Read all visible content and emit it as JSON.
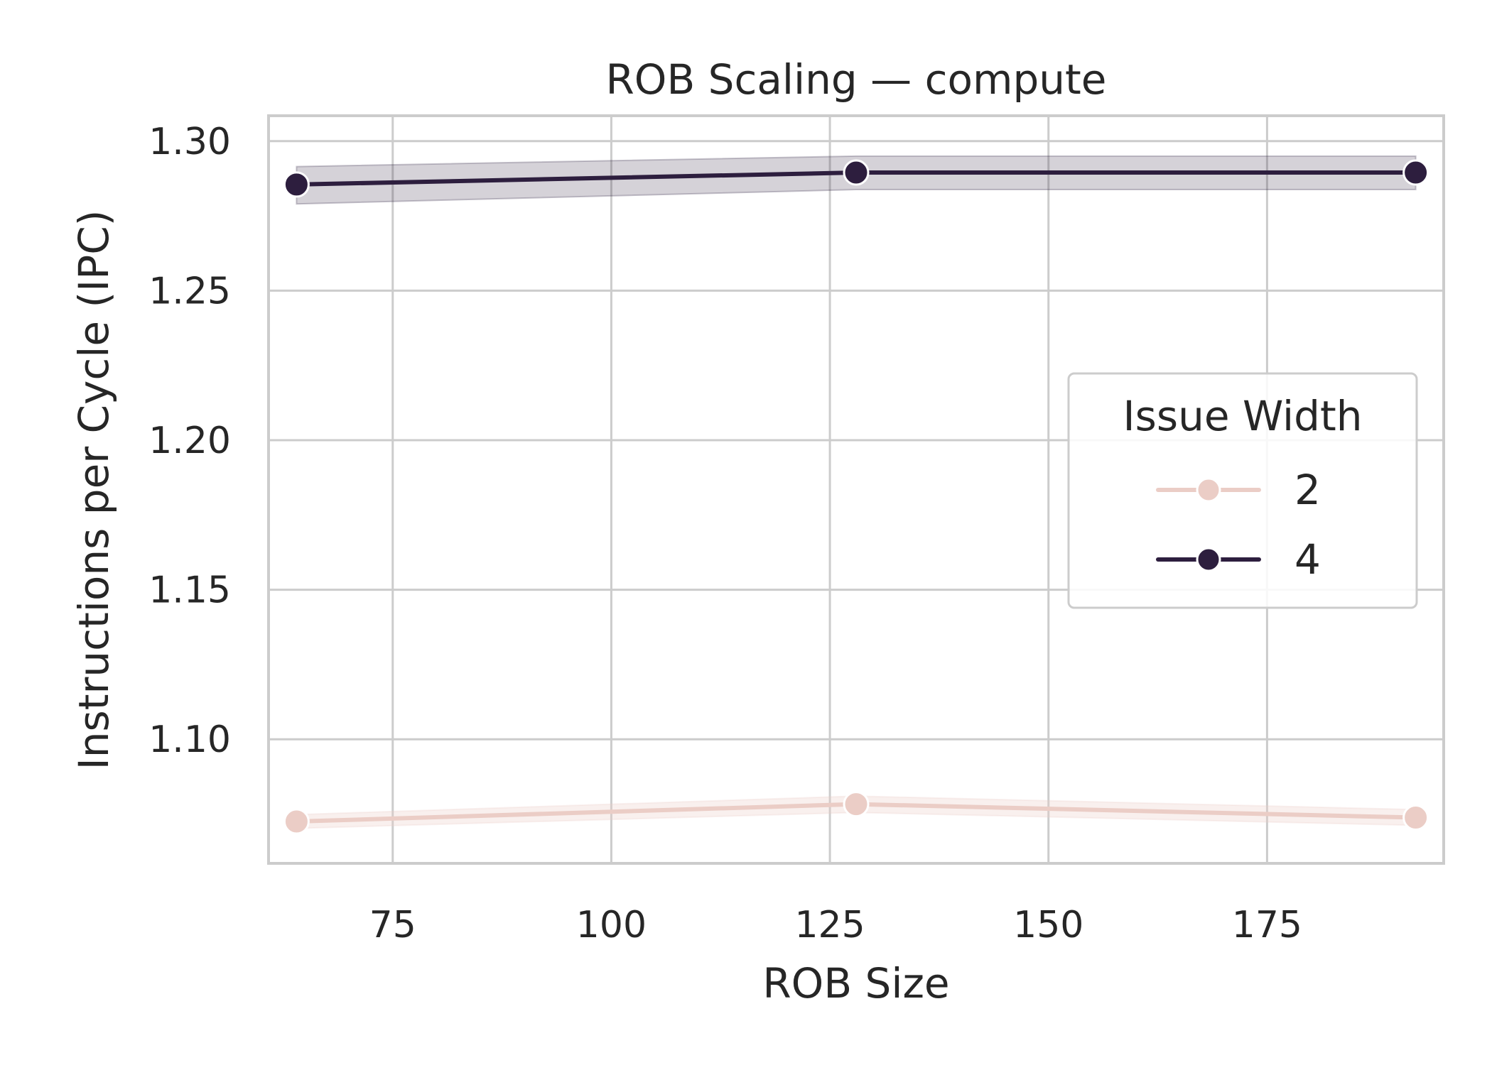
{
  "chart_data": {
    "type": "line",
    "title": "ROB Scaling — compute",
    "xlabel": "ROB Size",
    "ylabel": "Instructions per Cycle (IPC)",
    "xlim": [
      60.8,
      195.2
    ],
    "ylim": [
      1.0585,
      1.3085
    ],
    "xticks": [
      75,
      100,
      125,
      150,
      175
    ],
    "yticks": [
      1.1,
      1.15,
      1.2,
      1.25,
      1.3
    ],
    "grid": true,
    "legend": {
      "title": "Issue Width",
      "placement": "right"
    },
    "x": [
      64,
      128,
      192
    ],
    "series": [
      {
        "name": "2",
        "values": [
          1.0725,
          1.0783,
          1.0738
        ],
        "ci_low": [
          1.0702,
          1.0755,
          1.0712
        ],
        "ci_high": [
          1.0748,
          1.081,
          1.0765
        ],
        "color": "#ebcdc6"
      },
      {
        "name": "4",
        "values": [
          1.2855,
          1.2895,
          1.2895
        ],
        "ci_low": [
          1.279,
          1.2838,
          1.2838
        ],
        "ci_high": [
          1.2915,
          1.295,
          1.295
        ],
        "color": "#2d1e3e"
      }
    ]
  }
}
